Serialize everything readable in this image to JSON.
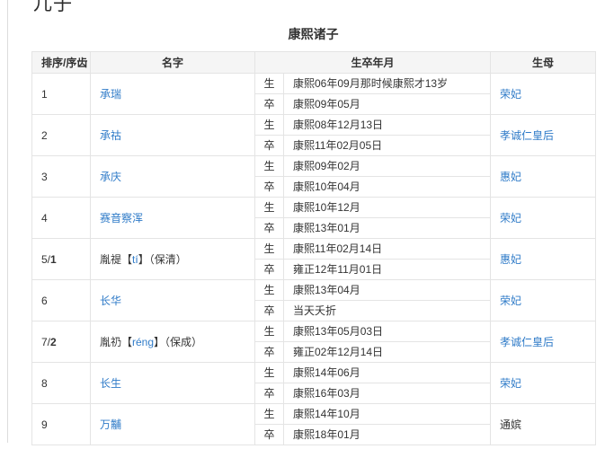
{
  "page": {
    "heading": "儿子"
  },
  "table": {
    "caption": "康熙诸子",
    "columns": [
      "排序/序齿",
      "名字",
      "生卒年月",
      "生母"
    ],
    "labels": {
      "birth": "生",
      "death": "卒"
    },
    "colors": {
      "link": "#2f7bc8",
      "header_bg": "#f5f5f5",
      "border": "#e4e4e4",
      "text": "#333333"
    },
    "rows": [
      {
        "seq": [
          {
            "t": "1"
          }
        ],
        "name": [
          {
            "t": "承瑞",
            "link": true
          }
        ],
        "birth": "康熙06年09月那时候康熙才13岁",
        "death": "康熙09年05月",
        "mother": {
          "t": "荣妃",
          "link": true
        }
      },
      {
        "seq": [
          {
            "t": "2"
          }
        ],
        "name": [
          {
            "t": "承祜",
            "link": true
          }
        ],
        "birth": "康熙08年12月13日",
        "death": "康熙11年02月05日",
        "mother": {
          "t": "孝诚仁皇后",
          "link": true
        }
      },
      {
        "seq": [
          {
            "t": "3"
          }
        ],
        "name": [
          {
            "t": "承庆",
            "link": true
          }
        ],
        "birth": "康熙09年02月",
        "death": "康熙10年04月",
        "mother": {
          "t": "惠妃",
          "link": true
        }
      },
      {
        "seq": [
          {
            "t": "4"
          }
        ],
        "name": [
          {
            "t": "赛音察浑",
            "link": true
          }
        ],
        "birth": "康熙10年12月",
        "death": "康熙13年01月",
        "mother": {
          "t": "荣妃",
          "link": true
        }
      },
      {
        "seq": [
          {
            "t": "5/"
          },
          {
            "t": "1",
            "bold": true
          }
        ],
        "name": [
          {
            "t": "胤禔【"
          },
          {
            "t": "tí",
            "pinyin": true
          },
          {
            "t": "】（保清）"
          }
        ],
        "birth": "康熙11年02月14日",
        "death": "雍正12年11月01日",
        "mother": {
          "t": "惠妃",
          "link": true
        }
      },
      {
        "seq": [
          {
            "t": "6"
          }
        ],
        "name": [
          {
            "t": "长华",
            "link": true
          }
        ],
        "birth": "康熙13年04月",
        "death": "当天夭折",
        "mother": {
          "t": "荣妃",
          "link": true
        }
      },
      {
        "seq": [
          {
            "t": "7/"
          },
          {
            "t": "2",
            "bold": true
          }
        ],
        "name": [
          {
            "t": "胤礽【"
          },
          {
            "t": "réng",
            "pinyin": true
          },
          {
            "t": "】（保成）"
          }
        ],
        "birth": "康熙13年05月03日",
        "death": "雍正02年12月14日",
        "mother": {
          "t": "孝诚仁皇后",
          "link": true
        }
      },
      {
        "seq": [
          {
            "t": "8"
          }
        ],
        "name": [
          {
            "t": "长生",
            "link": true
          }
        ],
        "birth": "康熙14年06月",
        "death": "康熙16年03月",
        "mother": {
          "t": "荣妃",
          "link": true
        }
      },
      {
        "seq": [
          {
            "t": "9"
          }
        ],
        "name": [
          {
            "t": "万黼",
            "link": true
          }
        ],
        "birth": "康熙14年10月",
        "death": "康熙18年01月",
        "mother": {
          "t": "通嫔"
        }
      }
    ]
  }
}
